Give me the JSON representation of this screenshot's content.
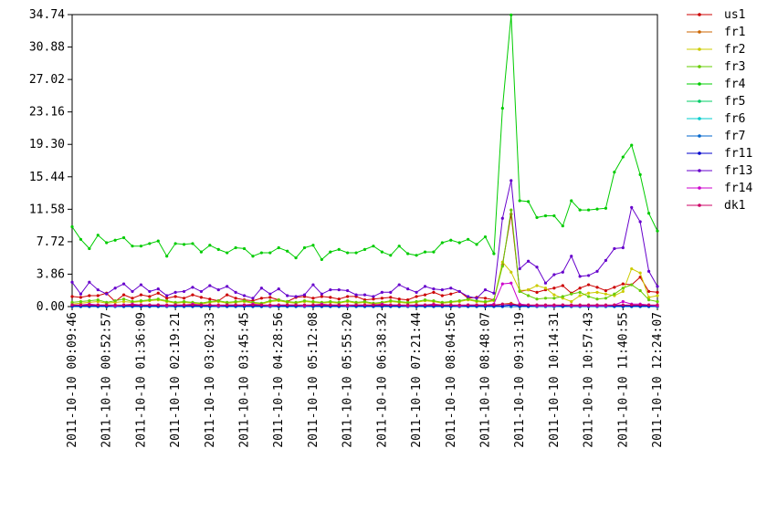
{
  "chart_data": {
    "type": "line",
    "categories": [
      "2011-10-10 00:09:46",
      null,
      null,
      null,
      "2011-10-10 00:52:57",
      null,
      null,
      null,
      "2011-10-10 01:36:09",
      null,
      null,
      null,
      "2011-10-10 02:19:21",
      null,
      null,
      null,
      "2011-10-10 03:02:33",
      null,
      null,
      null,
      "2011-10-10 03:45:45",
      null,
      null,
      null,
      "2011-10-10 04:28:56",
      null,
      null,
      null,
      "2011-10-10 05:12:08",
      null,
      null,
      null,
      "2011-10-10 05:55:20",
      null,
      null,
      null,
      "2011-10-10 06:38:32",
      null,
      null,
      null,
      "2011-10-10 07:21:44",
      null,
      null,
      null,
      "2011-10-10 08:04:56",
      null,
      null,
      null,
      "2011-10-10 08:48:07",
      null,
      null,
      null,
      "2011-10-10 09:31:19",
      null,
      null,
      null,
      "2011-10-10 10:14:31",
      null,
      null,
      null,
      "2011-10-10 10:57:43",
      null,
      null,
      null,
      "2011-10-10 11:40:55",
      null,
      null,
      null,
      "2011-10-10 12:24:07"
    ],
    "ylim": [
      0,
      34.74
    ],
    "yticks": [
      {
        "value": 0,
        "label": "0.00"
      },
      3.86,
      7.72,
      11.58,
      15.44,
      {
        "value": 19.3,
        "label": "19.30"
      },
      23.16,
      27.02,
      30.88,
      34.74
    ],
    "series": [
      {
        "name": "us1",
        "color": "#cc0000",
        "values": [
          1.2,
          1.1,
          1.3,
          1.3,
          1.6,
          0.6,
          1.4,
          1.0,
          1.4,
          1.2,
          1.6,
          1.0,
          1.2,
          1.0,
          1.4,
          1.1,
          0.9,
          0.7,
          1.4,
          1.0,
          0.8,
          0.7,
          1.0,
          1.1,
          0.8,
          0.6,
          1.1,
          1.2,
          1.0,
          1.2,
          1.1,
          0.9,
          1.2,
          1.2,
          0.8,
          0.9,
          1.0,
          1.1,
          0.9,
          0.8,
          1.2,
          1.4,
          1.7,
          1.3,
          1.5,
          1.8,
          1.0,
          1.1,
          1.0,
          0.8,
          5.0,
          11.0,
          1.8,
          2.0,
          1.7,
          2.0,
          2.2,
          2.5,
          1.6,
          2.2,
          2.6,
          2.3,
          1.9,
          2.3,
          2.7,
          2.6,
          3.5,
          1.8,
          1.7
        ]
      },
      {
        "name": "fr1",
        "color": "#cc6600",
        "values": [
          0.1,
          0.1,
          0.1,
          0.1,
          0.1,
          0.1,
          0.1,
          0.1,
          0.1,
          0.1,
          0.1,
          0.1,
          0.1,
          0.1,
          0.1,
          0.1,
          0.1,
          0.1,
          0.1,
          0.1,
          0.1,
          0.1,
          0.1,
          0.1,
          0.1,
          0.1,
          0.1,
          0.1,
          0.1,
          0.1,
          0.1,
          0.1,
          0.1,
          0.1,
          0.1,
          0.1,
          0.1,
          0.1,
          0.1,
          0.1,
          0.1,
          0.1,
          0.1,
          0.1,
          0.1,
          0.1,
          0.1,
          0.1,
          0.1,
          0.1,
          0.3,
          0.4,
          0.1,
          0.1,
          0.1,
          0.1,
          0.1,
          0.1,
          0.1,
          0.1,
          0.1,
          0.1,
          0.1,
          0.1,
          0.1,
          0.1,
          0.1,
          0.1,
          0.1
        ]
      },
      {
        "name": "fr2",
        "color": "#cccc00",
        "values": [
          0.3,
          0.4,
          0.5,
          0.6,
          0.4,
          0.5,
          0.6,
          0.5,
          0.6,
          0.7,
          0.8,
          0.6,
          0.4,
          0.5,
          0.4,
          0.3,
          0.5,
          0.6,
          0.4,
          0.5,
          0.6,
          0.4,
          0.3,
          0.6,
          0.7,
          0.5,
          0.4,
          0.6,
          0.5,
          0.4,
          0.5,
          0.4,
          0.6,
          0.4,
          0.5,
          0.3,
          0.4,
          0.6,
          0.5,
          0.4,
          0.5,
          0.7,
          0.6,
          0.4,
          0.5,
          0.6,
          0.8,
          0.6,
          0.5,
          0.7,
          5.3,
          4.1,
          1.9,
          2.0,
          2.5,
          2.2,
          1.4,
          1.0,
          0.6,
          1.3,
          1.6,
          1.7,
          1.5,
          1.3,
          1.8,
          4.5,
          4.0,
          1.1,
          1.3
        ]
      },
      {
        "name": "fr3",
        "color": "#66cc00",
        "values": [
          0.5,
          0.6,
          0.7,
          0.8,
          0.5,
          0.7,
          0.9,
          0.6,
          0.7,
          0.8,
          0.9,
          0.7,
          0.5,
          0.6,
          0.5,
          0.4,
          0.6,
          0.7,
          0.5,
          0.6,
          0.7,
          0.5,
          0.4,
          0.7,
          0.8,
          0.6,
          0.5,
          0.7,
          0.6,
          0.5,
          0.6,
          0.5,
          0.7,
          0.5,
          0.6,
          0.4,
          0.5,
          0.7,
          0.6,
          0.5,
          0.6,
          0.8,
          0.7,
          0.5,
          0.6,
          0.7,
          0.9,
          0.7,
          0.6,
          0.8,
          4.8,
          11.5,
          1.8,
          1.3,
          0.9,
          1.0,
          1.0,
          1.2,
          1.5,
          1.7,
          1.2,
          0.9,
          1.0,
          1.5,
          2.2,
          2.6,
          1.9,
          0.8,
          0.6
        ]
      },
      {
        "name": "fr4",
        "color": "#00cc00",
        "values": [
          9.5,
          8.0,
          6.9,
          8.5,
          7.6,
          7.9,
          8.2,
          7.2,
          7.2,
          7.5,
          7.8,
          6.0,
          7.5,
          7.4,
          7.5,
          6.5,
          7.3,
          6.8,
          6.4,
          7.0,
          6.9,
          6.0,
          6.4,
          6.4,
          7.0,
          6.6,
          5.8,
          7.0,
          7.3,
          5.6,
          6.5,
          6.8,
          6.4,
          6.4,
          6.8,
          7.2,
          6.5,
          6.1,
          7.2,
          6.3,
          6.1,
          6.5,
          6.5,
          7.6,
          7.9,
          7.6,
          8.0,
          7.4,
          8.3,
          6.3,
          23.6,
          34.7,
          12.6,
          12.5,
          10.6,
          10.8,
          10.8,
          9.6,
          12.6,
          11.5,
          11.5,
          11.6,
          11.7,
          16.0,
          17.8,
          19.2,
          15.7,
          11.1,
          9.0
        ]
      },
      {
        "name": "fr5",
        "color": "#00cc66",
        "values": [
          0.0,
          0.0,
          0.0,
          0.0,
          0.0,
          0.0,
          0.0,
          0.0,
          0.0,
          0.0,
          0.0,
          0.0,
          0.0,
          0.0,
          0.0,
          0.0,
          0.0,
          0.0,
          0.0,
          0.0,
          0.0,
          0.0,
          0.0,
          0.0,
          0.0,
          0.0,
          0.0,
          0.0,
          0.0,
          0.0,
          0.0,
          0.0,
          0.0,
          0.0,
          0.0,
          0.0,
          0.0,
          0.0,
          0.0,
          0.0,
          0.0,
          0.0,
          0.0,
          0.0,
          0.0,
          0.0,
          0.0,
          0.0,
          0.0,
          0.0,
          0.0,
          0.0,
          0.0,
          0.0,
          0.0,
          0.0,
          0.0,
          0.0,
          0.0,
          0.0,
          0.0,
          0.0,
          0.0,
          0.0,
          0.0,
          0.0,
          0.0,
          0.0,
          0.0
        ]
      },
      {
        "name": "fr6",
        "color": "#00cccc",
        "values": [
          0.0,
          0.0,
          0.0,
          0.0,
          0.0,
          0.0,
          0.0,
          0.0,
          0.0,
          0.0,
          0.0,
          0.0,
          0.0,
          0.0,
          0.0,
          0.0,
          0.0,
          0.0,
          0.0,
          0.0,
          0.0,
          0.0,
          0.0,
          0.0,
          0.0,
          0.0,
          0.0,
          0.0,
          0.0,
          0.0,
          0.0,
          0.0,
          0.0,
          0.0,
          0.0,
          0.0,
          0.0,
          0.0,
          0.0,
          0.0,
          0.0,
          0.0,
          0.0,
          0.0,
          0.0,
          0.0,
          0.0,
          0.0,
          0.0,
          0.0,
          0.0,
          0.0,
          0.0,
          0.0,
          0.0,
          0.0,
          0.0,
          0.0,
          0.0,
          0.0,
          0.0,
          0.0,
          0.0,
          0.0,
          0.0,
          0.0,
          0.0,
          0.0,
          0.0
        ]
      },
      {
        "name": "fr7",
        "color": "#0066cc",
        "values": [
          0.0,
          0.0,
          0.0,
          0.0,
          0.0,
          0.0,
          0.0,
          0.0,
          0.0,
          0.0,
          0.0,
          0.0,
          0.0,
          0.0,
          0.0,
          0.0,
          0.0,
          0.0,
          0.0,
          0.0,
          0.0,
          0.0,
          0.0,
          0.0,
          0.0,
          0.0,
          0.0,
          0.0,
          0.0,
          0.0,
          0.0,
          0.0,
          0.0,
          0.0,
          0.0,
          0.0,
          0.0,
          0.0,
          0.0,
          0.0,
          0.0,
          0.0,
          0.0,
          0.0,
          0.0,
          0.0,
          0.0,
          0.0,
          0.0,
          0.0,
          0.0,
          0.0,
          0.0,
          0.0,
          0.0,
          0.0,
          0.0,
          0.0,
          0.0,
          0.0,
          0.0,
          0.0,
          0.0,
          0.0,
          0.0,
          0.0,
          0.0,
          0.0,
          0.0
        ]
      },
      {
        "name": "fr11",
        "color": "#0000cc",
        "values": [
          0.1,
          0.1,
          0.1,
          0.1,
          0.1,
          0.1,
          0.1,
          0.1,
          0.1,
          0.1,
          0.1,
          0.1,
          0.1,
          0.1,
          0.1,
          0.1,
          0.1,
          0.1,
          0.1,
          0.1,
          0.1,
          0.1,
          0.1,
          0.1,
          0.1,
          0.1,
          0.1,
          0.1,
          0.1,
          0.1,
          0.1,
          0.1,
          0.1,
          0.1,
          0.1,
          0.1,
          0.1,
          0.1,
          0.1,
          0.1,
          0.1,
          0.1,
          0.1,
          0.1,
          0.1,
          0.1,
          0.1,
          0.1,
          0.1,
          0.1,
          0.1,
          0.2,
          0.1,
          0.1,
          0.1,
          0.1,
          0.1,
          0.1,
          0.1,
          0.1,
          0.1,
          0.1,
          0.1,
          0.1,
          0.1,
          0.1,
          0.1,
          0.1,
          0.1
        ]
      },
      {
        "name": "fr13",
        "color": "#6600cc",
        "values": [
          2.9,
          1.5,
          2.9,
          2.0,
          1.5,
          2.2,
          2.7,
          1.8,
          2.6,
          1.8,
          2.1,
          1.3,
          1.7,
          1.8,
          2.3,
          1.8,
          2.5,
          2.0,
          2.4,
          1.7,
          1.3,
          1.0,
          2.2,
          1.5,
          2.1,
          1.3,
          1.2,
          1.4,
          2.6,
          1.5,
          2.0,
          2.0,
          1.9,
          1.4,
          1.4,
          1.2,
          1.7,
          1.7,
          2.6,
          2.1,
          1.7,
          2.4,
          2.1,
          2.0,
          2.2,
          1.8,
          1.2,
          1.0,
          2.0,
          1.6,
          10.5,
          15.0,
          4.5,
          5.4,
          4.7,
          2.8,
          3.8,
          4.1,
          6.0,
          3.6,
          3.7,
          4.2,
          5.5,
          6.9,
          7.0,
          11.8,
          10.1,
          4.2,
          2.4
        ]
      },
      {
        "name": "fr14",
        "color": "#cc00cc",
        "values": [
          0.2,
          0.2,
          0.3,
          0.2,
          0.2,
          0.1,
          0.2,
          0.3,
          0.2,
          0.2,
          0.2,
          0.1,
          0.2,
          0.2,
          0.3,
          0.2,
          0.2,
          0.1,
          0.2,
          0.2,
          0.2,
          0.3,
          0.2,
          0.1,
          0.2,
          0.2,
          0.2,
          0.1,
          0.2,
          0.3,
          0.2,
          0.2,
          0.1,
          0.2,
          0.2,
          0.2,
          0.3,
          0.2,
          0.2,
          0.1,
          0.2,
          0.2,
          0.3,
          0.2,
          0.2,
          0.1,
          0.2,
          0.2,
          0.2,
          0.3,
          2.7,
          2.8,
          0.3,
          0.2,
          0.1,
          0.1,
          0.1,
          0.2,
          0.1,
          0.1,
          0.1,
          0.1,
          0.1,
          0.2,
          0.6,
          0.3,
          0.3,
          0.2,
          0.1
        ]
      },
      {
        "name": "dk1",
        "color": "#cc0066",
        "values": [
          0.2,
          0.2,
          0.2,
          0.2,
          0.2,
          0.2,
          0.2,
          0.2,
          0.2,
          0.2,
          0.2,
          0.2,
          0.2,
          0.2,
          0.2,
          0.2,
          0.2,
          0.2,
          0.2,
          0.2,
          0.2,
          0.2,
          0.2,
          0.2,
          0.2,
          0.2,
          0.2,
          0.2,
          0.2,
          0.2,
          0.2,
          0.2,
          0.2,
          0.2,
          0.2,
          0.2,
          0.2,
          0.2,
          0.2,
          0.2,
          0.2,
          0.2,
          0.2,
          0.2,
          0.2,
          0.2,
          0.2,
          0.2,
          0.2,
          0.2,
          0.3,
          0.3,
          0.2,
          0.2,
          0.2,
          0.2,
          0.2,
          0.2,
          0.2,
          0.2,
          0.2,
          0.2,
          0.2,
          0.2,
          0.2,
          0.2,
          0.2,
          0.2,
          0.2
        ]
      }
    ]
  }
}
